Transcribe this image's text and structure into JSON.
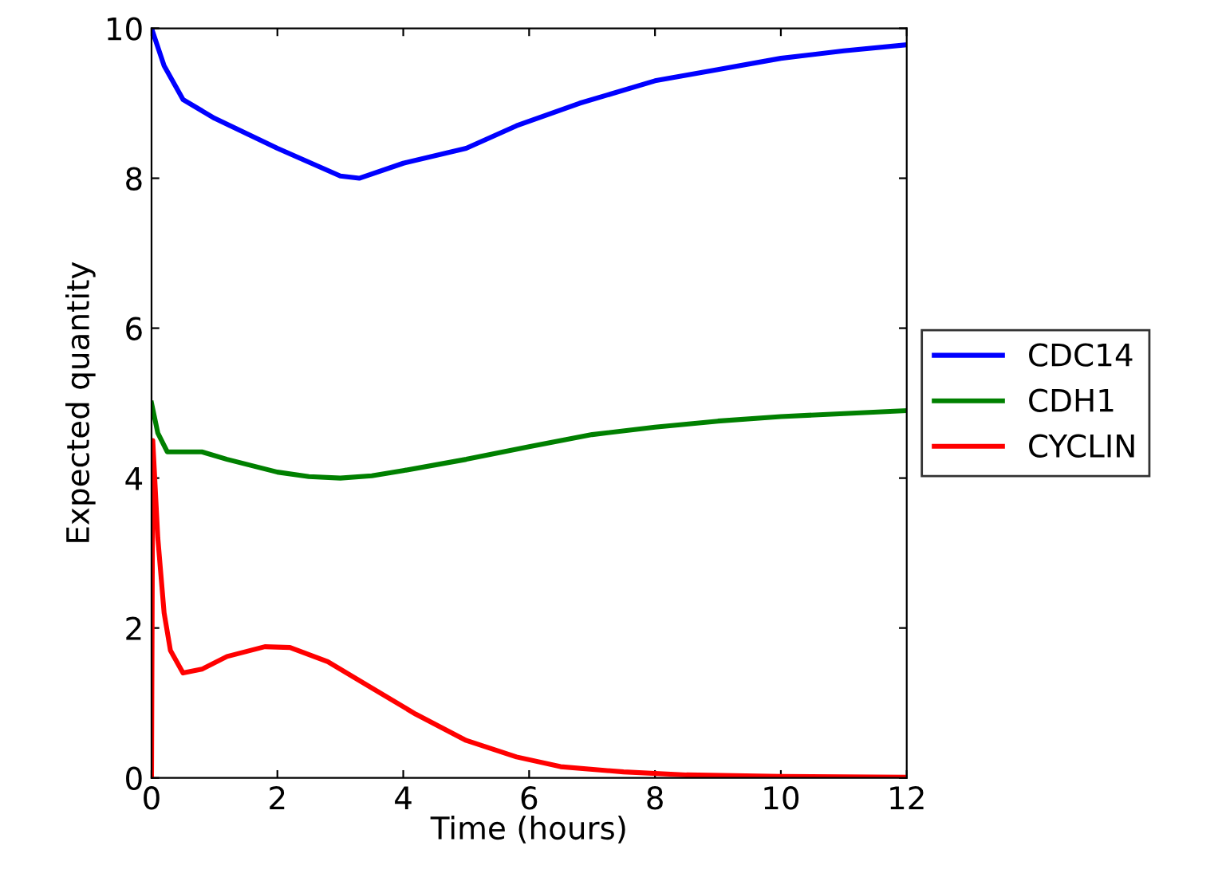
{
  "chart_data": {
    "type": "line",
    "xlabel": "Time (hours)",
    "ylabel": "Expected quantity",
    "xlim": [
      0,
      12
    ],
    "ylim": [
      0,
      10
    ],
    "xticks": [
      0,
      2,
      4,
      6,
      8,
      10,
      12
    ],
    "yticks": [
      0,
      2,
      4,
      6,
      8,
      10
    ],
    "legend": "right",
    "grid": false,
    "marker": "none",
    "line_style": "solid",
    "series": [
      {
        "name": "CDC14",
        "color": "#0000ff",
        "x": [
          0,
          0.2,
          0.5,
          1,
          2,
          3,
          3.3,
          4,
          5,
          5.8,
          6.8,
          8,
          9,
          10,
          11,
          12
        ],
        "values": [
          10,
          9.5,
          9.05,
          8.8,
          8.4,
          8.03,
          8.0,
          8.2,
          8.4,
          8.7,
          9.0,
          9.3,
          9.45,
          9.6,
          9.7,
          9.78
        ]
      },
      {
        "name": "CDH1",
        "color": "#008000",
        "x": [
          0,
          0.1,
          0.25,
          0.5,
          0.8,
          1.2,
          2,
          2.5,
          3,
          3.5,
          4,
          5,
          6,
          7,
          8,
          9,
          10,
          11,
          12
        ],
        "values": [
          5.0,
          4.6,
          4.35,
          4.35,
          4.35,
          4.25,
          4.08,
          4.02,
          4.0,
          4.03,
          4.1,
          4.25,
          4.42,
          4.58,
          4.68,
          4.76,
          4.82,
          4.86,
          4.9
        ]
      },
      {
        "name": "CYCLIN",
        "color": "#ff0000",
        "x": [
          0,
          0.02,
          0.1,
          0.2,
          0.3,
          0.5,
          0.8,
          1.2,
          1.8,
          2.2,
          2.8,
          3.5,
          4.2,
          5,
          5.8,
          6.5,
          7.5,
          8.5,
          10,
          12
        ],
        "values": [
          0,
          4.5,
          3.2,
          2.2,
          1.7,
          1.4,
          1.45,
          1.62,
          1.75,
          1.74,
          1.55,
          1.2,
          0.85,
          0.5,
          0.28,
          0.15,
          0.08,
          0.04,
          0.02,
          0.01
        ]
      }
    ]
  }
}
